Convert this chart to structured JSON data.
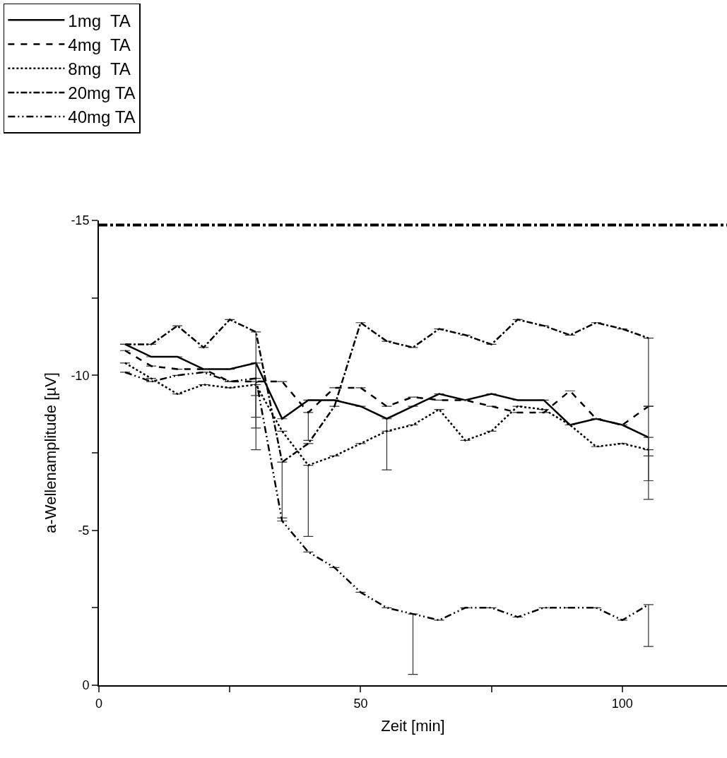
{
  "chart_data": {
    "type": "line",
    "xlabel": "Zeit [min]",
    "ylabel": "a-Wellenamplitude [µV]",
    "x": [
      5,
      10,
      15,
      20,
      25,
      30,
      35,
      40,
      45,
      50,
      55,
      60,
      65,
      70,
      75,
      80,
      85,
      90,
      95,
      100,
      105
    ],
    "xlim": [
      0,
      120
    ],
    "xticks": [
      0,
      50,
      100,
      {
        "value": 25,
        "label": null
      },
      {
        "value": 75,
        "label": null
      }
    ],
    "ylim": [
      0,
      -15
    ],
    "yticks": [
      0,
      -5,
      -10,
      -15,
      {
        "value": -2.5,
        "label": null
      },
      {
        "value": -7.5,
        "label": null
      },
      {
        "value": -12.5,
        "label": null
      }
    ],
    "legend": "top left",
    "marker": "none",
    "series": [
      {
        "name": "1mg  TA",
        "color": "#000000",
        "line_style": "solid",
        "values": [
          -11.0,
          -10.6,
          -10.6,
          -10.2,
          -10.2,
          -10.4,
          -8.6,
          -9.2,
          -9.2,
          -9.0,
          -8.6,
          -9.0,
          -9.4,
          -9.2,
          -9.4,
          -9.2,
          -9.2,
          -8.4,
          -8.6,
          -8.4,
          -8.0
        ],
        "errors": [
          null,
          null,
          null,
          null,
          null,
          [
            -10.4,
            -9.35
          ],
          null,
          null,
          null,
          null,
          [
            -8.6,
            -6.95
          ],
          null,
          null,
          null,
          null,
          null,
          null,
          null,
          null,
          null,
          [
            -8.0,
            -6.6
          ]
        ]
      },
      {
        "name": "4mg  TA",
        "color": "#000000",
        "line_style": "dashed",
        "values": [
          -10.8,
          -10.3,
          -10.2,
          -10.2,
          -9.8,
          -9.8,
          -9.8,
          -8.8,
          -9.6,
          -9.6,
          -9.0,
          -9.3,
          -9.2,
          -9.2,
          -9.0,
          -8.8,
          -8.8,
          -9.5,
          -8.6,
          -8.4,
          -9.0
        ],
        "errors": [
          null,
          null,
          null,
          null,
          null,
          [
            -9.8,
            -8.65
          ],
          null,
          [
            -8.8,
            -7.9
          ],
          null,
          null,
          null,
          null,
          null,
          null,
          null,
          null,
          null,
          null,
          null,
          null,
          [
            -9.0,
            -7.4
          ]
        ]
      },
      {
        "name": "8mg  TA",
        "color": "#000000",
        "line_style": "dotted",
        "values": [
          -10.4,
          -9.9,
          -9.4,
          -9.7,
          -9.6,
          -9.7,
          -8.2,
          -7.1,
          -7.4,
          -7.8,
          -8.2,
          -8.4,
          -8.9,
          -7.9,
          -8.2,
          -9.0,
          -8.9,
          -8.4,
          -7.7,
          -7.8,
          -7.6
        ],
        "errors": [
          null,
          null,
          null,
          null,
          null,
          [
            -9.7,
            -8.3
          ],
          null,
          [
            -7.1,
            -4.8
          ],
          null,
          null,
          null,
          null,
          null,
          null,
          null,
          null,
          null,
          null,
          null,
          null,
          [
            -7.6,
            -6.0
          ]
        ]
      },
      {
        "name": "20mg TA",
        "color": "#000000",
        "line_style": "dashdot",
        "values": [
          -11.0,
          -11.0,
          -11.6,
          -10.9,
          -11.8,
          -11.4,
          -7.2,
          -7.8,
          -9.0,
          -11.7,
          -11.1,
          -10.9,
          -11.5,
          -11.3,
          -11.0,
          -11.8,
          -11.6,
          -11.3,
          -11.7,
          -11.5,
          -11.2
        ],
        "errors": [
          null,
          null,
          null,
          null,
          null,
          [
            -11.4,
            -7.6
          ],
          [
            -7.2,
            -5.4
          ],
          null,
          null,
          null,
          null,
          null,
          null,
          null,
          null,
          null,
          null,
          null,
          null,
          null,
          [
            -11.2,
            -9.0
          ]
        ]
      },
      {
        "name": "40mg TA",
        "color": "#000000",
        "line_style": "dashdotdot",
        "values": [
          -10.1,
          -9.8,
          -10.0,
          -10.1,
          -9.8,
          -9.9,
          -5.3,
          -4.3,
          -3.8,
          -3.0,
          -2.5,
          -2.3,
          -2.1,
          -2.5,
          -2.5,
          -2.2,
          -2.5,
          -2.5,
          -2.5,
          -2.1,
          -2.6
        ],
        "errors": [
          null,
          null,
          null,
          null,
          null,
          null,
          null,
          null,
          null,
          null,
          null,
          [
            -2.3,
            -0.35
          ],
          null,
          null,
          null,
          null,
          null,
          null,
          null,
          null,
          [
            -2.6,
            -1.25
          ]
        ]
      }
    ],
    "ref_lines": [
      {
        "axis": "y",
        "value": -14.85,
        "color": "#000000",
        "line_style": "dashdot"
      }
    ]
  }
}
